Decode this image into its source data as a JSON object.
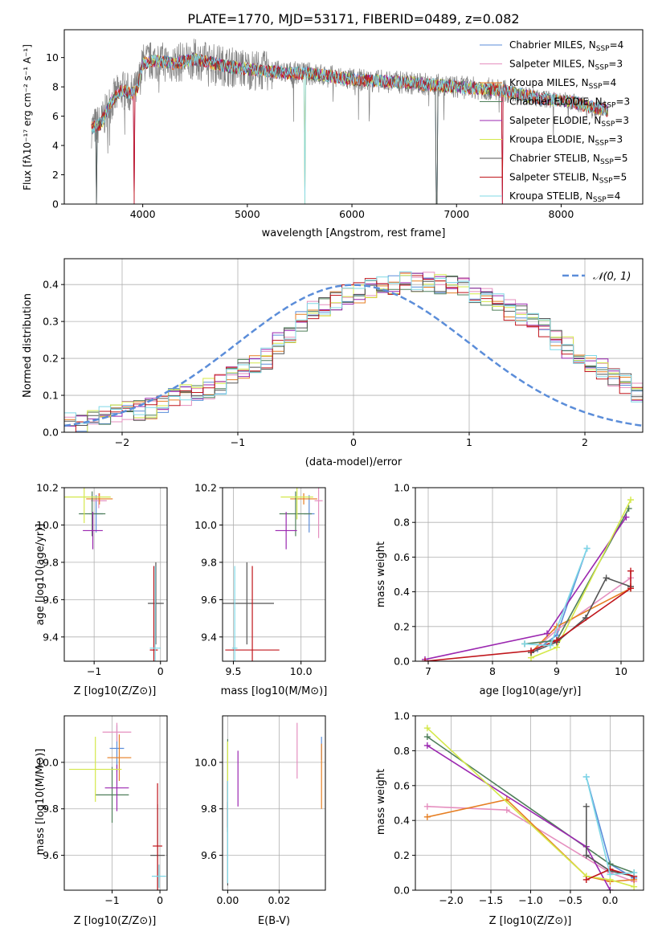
{
  "figure_title": "PLATE=1770, MJD=53171, FIBERID=0489, z=0.082",
  "series_styles": [
    {
      "name": "Chabrier MILES",
      "nssp": "4",
      "color": "#5b8dd9"
    },
    {
      "name": "Salpeter MILES",
      "nssp": "3",
      "color": "#e58fbf"
    },
    {
      "name": "Kroupa MILES",
      "nssp": "4",
      "color": "#e67e22"
    },
    {
      "name": "Chabrier ELODIE",
      "nssp": "3",
      "color": "#4f7f5a"
    },
    {
      "name": "Salpeter ELODIE",
      "nssp": "3",
      "color": "#9b27b0"
    },
    {
      "name": "Kroupa ELODIE",
      "nssp": "3",
      "color": "#d4e84a"
    },
    {
      "name": "Chabrier STELIB",
      "nssp": "5",
      "color": "#555555"
    },
    {
      "name": "Salpeter STELIB",
      "nssp": "5",
      "color": "#c0161c"
    },
    {
      "name": "Kroupa STELIB",
      "nssp": "4",
      "color": "#7fd8e6"
    }
  ],
  "chart_data": [
    {
      "id": "spectrum",
      "type": "line",
      "xlabel": "wavelength [Angstrom, rest frame]",
      "ylabel": "Flux [fλ10⁻¹⁷ erg cm⁻² s⁻¹ A⁻¹]",
      "xlim": [
        3250,
        8780
      ],
      "ylim": [
        0,
        11.9
      ],
      "xticks": [
        4000,
        5000,
        6000,
        7000,
        8000
      ],
      "yticks": [
        0,
        2,
        4,
        6,
        8,
        10
      ],
      "legend_position": "top-right",
      "data_color": "#808080",
      "continuum": {
        "x": [
          3510,
          3600,
          3700,
          3800,
          3900,
          3950,
          4000,
          4100,
          4300,
          4500,
          4800,
          5000,
          5300,
          5600,
          6000,
          6500,
          7000,
          7400,
          7800,
          8100,
          8300,
          8450
        ],
        "y": [
          5.2,
          5.5,
          7.0,
          7.8,
          7.5,
          7.9,
          9.6,
          9.8,
          9.6,
          9.9,
          9.4,
          9.2,
          9.0,
          8.9,
          8.5,
          8.3,
          8.0,
          7.8,
          7.2,
          7.0,
          6.6,
          6.4
        ]
      },
      "dropouts": [
        3560,
        3920,
        5550,
        6810,
        7440
      ],
      "wavelength_range": [
        3510,
        8450
      ]
    },
    {
      "id": "residuals",
      "type": "histogram",
      "xlabel": "(data-model)/error",
      "ylabel": "Normed distribution",
      "xlim": [
        -2.5,
        2.5
      ],
      "ylim": [
        0,
        0.47
      ],
      "xticks": [
        -2,
        -1,
        0,
        1,
        2
      ],
      "yticks": [
        0.0,
        0.1,
        0.2,
        0.3,
        0.4
      ],
      "legend": "𝒩(0, 1)",
      "reference_curve": {
        "mu": 0,
        "sigma": 1,
        "color": "#5b8dd9"
      },
      "bin_width": 0.1,
      "bin_start": -2.5,
      "envelope": [
        0.025,
        0.028,
        0.03,
        0.04,
        0.05,
        0.055,
        0.06,
        0.065,
        0.08,
        0.09,
        0.1,
        0.11,
        0.12,
        0.13,
        0.15,
        0.17,
        0.18,
        0.2,
        0.24,
        0.27,
        0.3,
        0.33,
        0.34,
        0.36,
        0.37,
        0.38,
        0.39,
        0.4,
        0.4,
        0.41,
        0.41,
        0.41,
        0.4,
        0.4,
        0.39,
        0.38,
        0.37,
        0.35,
        0.33,
        0.32,
        0.3,
        0.28,
        0.25,
        0.23,
        0.21,
        0.19,
        0.17,
        0.15,
        0.13,
        0.11
      ]
    },
    {
      "id": "age_vs_Z",
      "type": "errorbar",
      "xlabel": "Z [log10(Z/Z⊙)]",
      "ylabel": "age  [log10(age/yr)]",
      "xlim": [
        -1.45,
        0.1
      ],
      "ylim": [
        9.27,
        10.2
      ],
      "xticks": [
        -1,
        0
      ],
      "yticks": [
        9.4,
        9.6,
        9.8,
        10.0,
        10.2
      ],
      "points": [
        {
          "s": 0,
          "x": -0.97,
          "y": 10.06,
          "xerr": 0.1,
          "yerr": 0.1
        },
        {
          "s": 1,
          "x": -0.93,
          "y": 10.13,
          "xerr": 0.12,
          "yerr": 0.04
        },
        {
          "s": 2,
          "x": -0.92,
          "y": 10.14,
          "xerr": 0.2,
          "yerr": 0.03
        },
        {
          "s": 3,
          "x": -1.03,
          "y": 10.06,
          "xerr": 0.2,
          "yerr": 0.12
        },
        {
          "s": 4,
          "x": -1.02,
          "y": 9.97,
          "xerr": 0.15,
          "yerr": 0.1
        },
        {
          "s": 5,
          "x": -1.15,
          "y": 10.15,
          "xerr": 0.4,
          "yerr": 0.14
        },
        {
          "s": 6,
          "x": -0.07,
          "y": 9.58,
          "xerr": 0.12,
          "yerr": 0.22
        },
        {
          "s": 7,
          "x": -0.1,
          "y": 9.33,
          "xerr": 0.06,
          "yerr": 0.45
        },
        {
          "s": 8,
          "x": -0.08,
          "y": 9.34,
          "xerr": 0.08,
          "yerr": 0.44
        }
      ]
    },
    {
      "id": "age_vs_mass",
      "type": "errorbar",
      "xlabel": "mass [log10(M/M⊙)]",
      "ylabel": "",
      "xlim": [
        9.42,
        10.18
      ],
      "ylim": [
        9.27,
        10.2
      ],
      "xticks": [
        9.5,
        10.0
      ],
      "yticks": [
        9.4,
        9.6,
        9.8,
        10.0,
        10.2
      ],
      "points": [
        {
          "s": 0,
          "x": 10.06,
          "y": 10.06,
          "xerr": 0.04,
          "yerr": 0.1
        },
        {
          "s": 1,
          "x": 10.13,
          "y": 10.13,
          "xerr": 0.03,
          "yerr": 0.2
        },
        {
          "s": 2,
          "x": 10.02,
          "y": 10.14,
          "xerr": 0.1,
          "yerr": 0.03
        },
        {
          "s": 3,
          "x": 9.96,
          "y": 10.06,
          "xerr": 0.12,
          "yerr": 0.12
        },
        {
          "s": 4,
          "x": 9.89,
          "y": 9.97,
          "xerr": 0.08,
          "yerr": 0.1
        },
        {
          "s": 5,
          "x": 9.97,
          "y": 10.15,
          "xerr": 0.12,
          "yerr": 0.12
        },
        {
          "s": 6,
          "x": 9.6,
          "y": 9.58,
          "xerr": 0.2,
          "yerr": 0.22
        },
        {
          "s": 7,
          "x": 9.64,
          "y": 9.33,
          "xerr": 0.2,
          "yerr": 0.45
        },
        {
          "s": 8,
          "x": 9.51,
          "y": 9.34,
          "xerr": 0.02,
          "yerr": 0.44
        }
      ]
    },
    {
      "id": "weight_vs_age",
      "type": "line",
      "xlabel": "age  [log10(age/yr)]",
      "ylabel": "mass weight",
      "xlim": [
        6.8,
        10.35
      ],
      "ylim": [
        0,
        1.0
      ],
      "xticks": [
        7,
        8,
        9,
        10
      ],
      "yticks": [
        0.0,
        0.2,
        0.4,
        0.6,
        0.8,
        1.0
      ],
      "series": [
        {
          "s": 0,
          "x": [
            8.7,
            9.0,
            9.47
          ],
          "y": [
            0.07,
            0.15,
            0.65
          ]
        },
        {
          "s": 1,
          "x": [
            8.6,
            9.0,
            10.15
          ],
          "y": [
            0.05,
            0.18,
            0.48
          ]
        },
        {
          "s": 2,
          "x": [
            8.6,
            9.0,
            10.15
          ],
          "y": [
            0.05,
            0.2,
            0.42
          ]
        },
        {
          "s": 3,
          "x": [
            8.5,
            9.0,
            10.12
          ],
          "y": [
            0.1,
            0.12,
            0.88
          ]
        },
        {
          "s": 4,
          "x": [
            6.95,
            8.85,
            10.08
          ],
          "y": [
            0.01,
            0.16,
            0.83
          ]
        },
        {
          "s": 5,
          "x": [
            8.6,
            9.0,
            10.15
          ],
          "y": [
            0.02,
            0.08,
            0.93
          ]
        },
        {
          "s": 6,
          "x": [
            8.6,
            9.0,
            9.45,
            9.77,
            10.15
          ],
          "y": [
            0.05,
            0.11,
            0.25,
            0.48,
            0.43
          ]
        },
        {
          "s": 7,
          "x": [
            6.95,
            8.6,
            9.0,
            10.15,
            10.15
          ],
          "y": [
            0.0,
            0.06,
            0.12,
            0.42,
            0.52
          ]
        },
        {
          "s": 8,
          "x": [
            8.5,
            8.9,
            9.47
          ],
          "y": [
            0.1,
            0.09,
            0.65
          ]
        }
      ]
    },
    {
      "id": "mass_vs_Z",
      "type": "errorbar",
      "xlabel": "Z [log10(Z/Z⊙)]",
      "ylabel": "mass [log10(M/M⊙)]",
      "xlim": [
        -2.0,
        0.15
      ],
      "ylim": [
        9.45,
        10.2
      ],
      "xticks": [
        -1,
        0
      ],
      "yticks": [
        9.6,
        9.8,
        10.0
      ],
      "points": [
        {
          "s": 0,
          "x": -0.9,
          "y": 10.06,
          "xerr": 0.15,
          "yerr": 0.1
        },
        {
          "s": 1,
          "x": -0.9,
          "y": 10.13,
          "xerr": 0.3,
          "yerr": 0.04
        },
        {
          "s": 2,
          "x": -0.85,
          "y": 10.02,
          "xerr": 0.25,
          "yerr": 0.1
        },
        {
          "s": 3,
          "x": -1.0,
          "y": 9.86,
          "xerr": 0.35,
          "yerr": 0.12
        },
        {
          "s": 4,
          "x": -0.9,
          "y": 9.89,
          "xerr": 0.25,
          "yerr": 0.1
        },
        {
          "s": 5,
          "x": -1.35,
          "y": 9.97,
          "xerr": 0.55,
          "yerr": 0.14
        },
        {
          "s": 6,
          "x": -0.05,
          "y": 9.6,
          "xerr": 0.15,
          "yerr": 0.22
        },
        {
          "s": 7,
          "x": -0.05,
          "y": 9.64,
          "xerr": 0.1,
          "yerr": 0.27
        },
        {
          "s": 8,
          "x": -0.02,
          "y": 9.51,
          "xerr": 0.15,
          "yerr": 0.05
        }
      ]
    },
    {
      "id": "mass_vs_ebv",
      "type": "errorbar",
      "xlabel": "E(B-V)",
      "ylabel": "",
      "xlim": [
        -0.002,
        0.038
      ],
      "ylim": [
        9.45,
        10.2
      ],
      "xticks": [
        0.0,
        0.02
      ],
      "yticks": [
        9.6,
        9.8,
        10.0
      ],
      "points": [
        {
          "s": 0,
          "x": 0.0365,
          "y": 10.06,
          "xerr": 0,
          "yerr": 0.05
        },
        {
          "s": 1,
          "x": 0.027,
          "y": 10.05,
          "xerr": 0,
          "yerr": 0.12
        },
        {
          "s": 2,
          "x": 0.0365,
          "y": 9.94,
          "xerr": 0,
          "yerr": 0.14
        },
        {
          "s": 3,
          "x": 0.0,
          "y": 9.9,
          "xerr": 0,
          "yerr": 0.2
        },
        {
          "s": 4,
          "x": 0.004,
          "y": 9.93,
          "xerr": 0,
          "yerr": 0.12
        },
        {
          "s": 5,
          "x": 0.0,
          "y": 9.97,
          "xerr": 0,
          "yerr": 0.12
        },
        {
          "s": 6,
          "x": 0.0,
          "y": 9.65,
          "xerr": 0,
          "yerr": 0.18
        },
        {
          "s": 7,
          "x": 0.0,
          "y": 9.82,
          "xerr": 0,
          "yerr": 0.1
        },
        {
          "s": 8,
          "x": 0.0,
          "y": 9.7,
          "xerr": 0,
          "yerr": 0.22
        }
      ]
    },
    {
      "id": "weight_vs_Z",
      "type": "line",
      "xlabel": "Z [log10(Z/Z⊙)]",
      "ylabel": "mass weight",
      "xlim": [
        -2.45,
        0.42
      ],
      "ylim": [
        0,
        1.0
      ],
      "xticks": [
        -2.0,
        -1.5,
        -1.0,
        -0.5,
        0.0
      ],
      "yticks": [
        0.0,
        0.2,
        0.4,
        0.6,
        0.8,
        1.0
      ],
      "series": [
        {
          "s": 0,
          "x": [
            -0.3,
            0.0,
            0.3
          ],
          "y": [
            0.65,
            0.15,
            0.07
          ]
        },
        {
          "s": 1,
          "x": [
            -2.3,
            -1.3,
            0.0,
            0.3
          ],
          "y": [
            0.48,
            0.46,
            0.1,
            0.05
          ]
        },
        {
          "s": 2,
          "x": [
            -2.3,
            -1.3,
            -0.3,
            0.0,
            0.3
          ],
          "y": [
            0.42,
            0.52,
            0.08,
            0.05,
            0.06
          ]
        },
        {
          "s": 3,
          "x": [
            -2.3,
            0.0,
            0.3
          ],
          "y": [
            0.88,
            0.15,
            0.1
          ]
        },
        {
          "s": 4,
          "x": [
            -2.3,
            -0.3,
            0.0
          ],
          "y": [
            0.83,
            0.25,
            0.0
          ]
        },
        {
          "s": 5,
          "x": [
            -2.3,
            -0.3,
            0.0,
            0.3
          ],
          "y": [
            0.93,
            0.08,
            0.06,
            0.02
          ]
        },
        {
          "s": 6,
          "x": [
            -0.3,
            -0.3,
            0.0,
            0.3
          ],
          "y": [
            0.48,
            0.2,
            0.11,
            0.08
          ]
        },
        {
          "s": 7,
          "x": [
            -0.3,
            0.0,
            0.3
          ],
          "y": [
            0.06,
            0.12,
            0.08
          ]
        },
        {
          "s": 8,
          "x": [
            -0.3,
            0.0,
            0.3
          ],
          "y": [
            0.65,
            0.09,
            0.1
          ]
        }
      ]
    }
  ]
}
